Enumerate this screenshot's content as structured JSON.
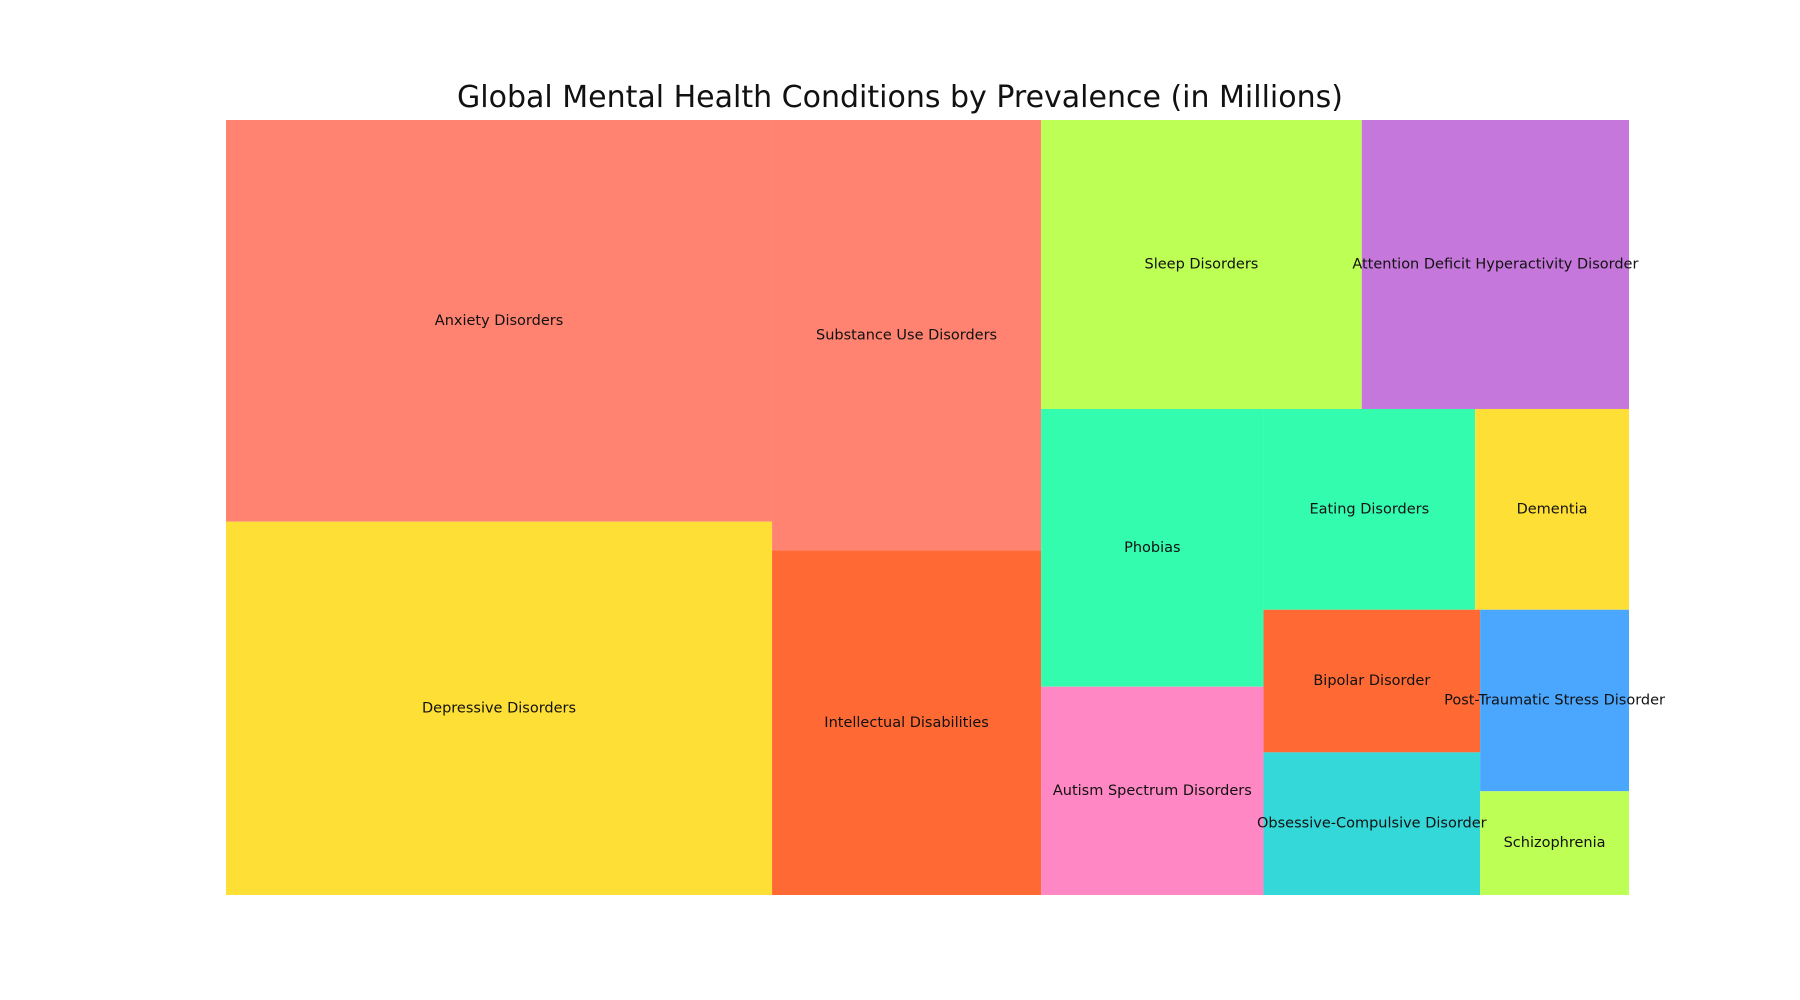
{
  "chart_data": {
    "type": "treemap",
    "title": "Global Mental Health Conditions by Prevalence (in Millions)",
    "unit": "millions",
    "items": [
      {
        "label": "Anxiety Disorders",
        "value": 284,
        "color": "#FF8370"
      },
      {
        "label": "Depressive Disorders",
        "value": 264,
        "color": "#FEDF36"
      },
      {
        "label": "Substance Use Disorders",
        "value": 150,
        "color": "#FF8370"
      },
      {
        "label": "Intellectual Disabilities",
        "value": 120,
        "color": "#FF6A34"
      },
      {
        "label": "Attention Deficit Hyperactivity Disorder",
        "value": 100,
        "color": "#C677DB"
      },
      {
        "label": "Sleep Disorders",
        "value": 120,
        "color": "#BDFF54"
      },
      {
        "label": "Phobias",
        "value": 80,
        "color": "#33FCAE"
      },
      {
        "label": "Eating Disorders",
        "value": 55,
        "color": "#33FCAE"
      },
      {
        "label": "Autism Spectrum Disorders",
        "value": 60,
        "color": "#FF87C4"
      },
      {
        "label": "Post-Traumatic Stress Disorder",
        "value": 35,
        "color": "#4BA6FE"
      },
      {
        "label": "Dementia",
        "value": 40,
        "color": "#FEDF36"
      },
      {
        "label": "Bipolar Disorder",
        "value": 40,
        "color": "#FF6A34"
      },
      {
        "label": "Obsessive-Compulsive Disorder",
        "value": 40,
        "color": "#34D8D8"
      },
      {
        "label": "Schizophrenia",
        "value": 20,
        "color": "#BDFF54"
      }
    ]
  }
}
